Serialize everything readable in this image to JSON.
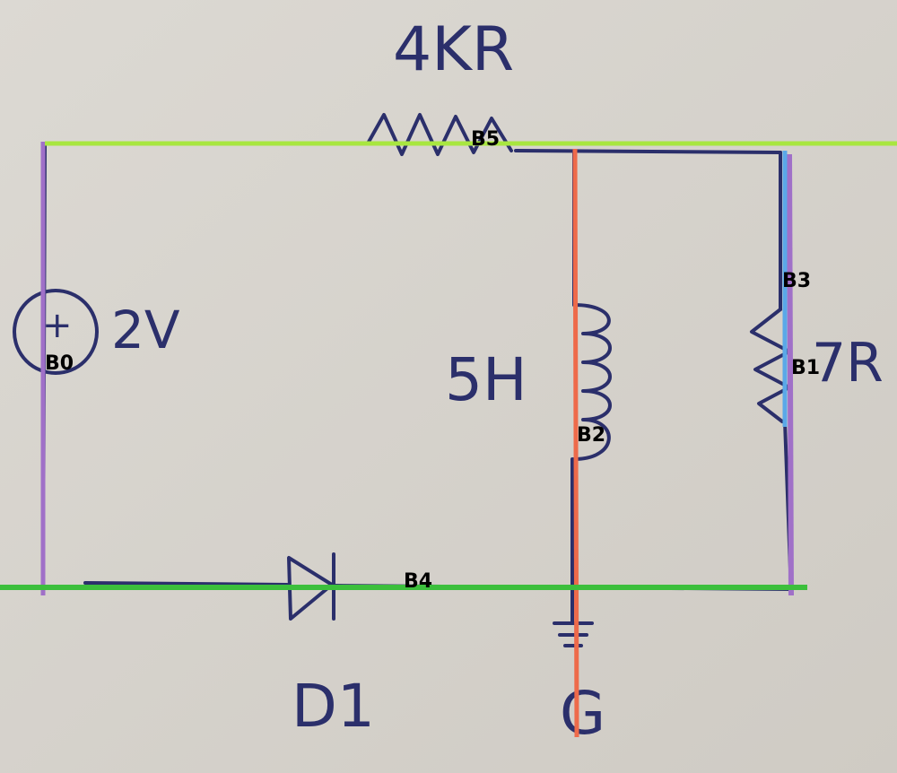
{
  "labels": {
    "resistor_top": "4KR",
    "voltage": "2V",
    "plus_sign": "+",
    "inductor": "5H",
    "resistor_right": "7R",
    "diode": "D1",
    "ground": "G"
  },
  "branches": [
    {
      "id": "B0",
      "color": "#a070c8"
    },
    {
      "id": "B1",
      "color": "#a070c8"
    },
    {
      "id": "B2",
      "color": "#ee6a4a"
    },
    {
      "id": "B3",
      "color": "#5aa8e8"
    },
    {
      "id": "B4",
      "color": "#3cbf3c"
    },
    {
      "id": "B5",
      "color": "#a8e640"
    }
  ],
  "colors": {
    "paper": "#d9d6d0",
    "ink": "#2b2f6b"
  }
}
